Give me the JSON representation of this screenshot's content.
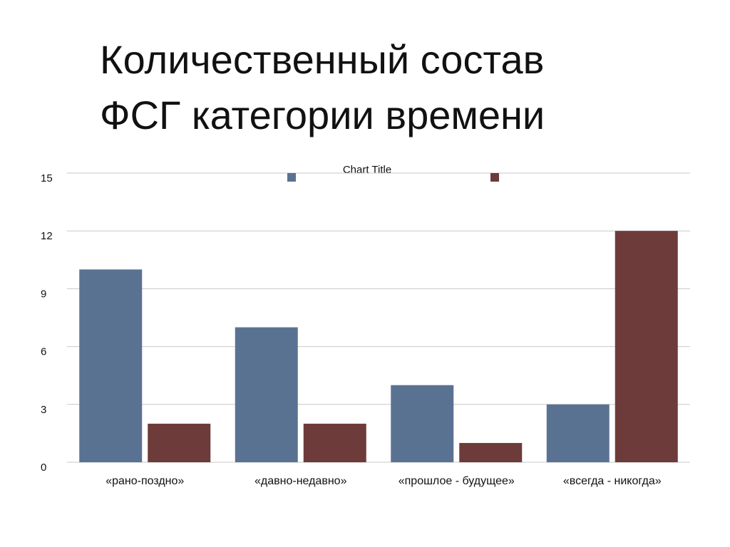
{
  "slide_title": [
    "Количественный состав",
    "ФСГ категории времени"
  ],
  "chart_data": {
    "type": "bar",
    "title": "Chart Title",
    "categories": [
      "«рано-поздно»",
      "«давно-недавно»",
      "«прошлое - будущее»",
      "«всегда - никогда»"
    ],
    "series": [
      {
        "color": "#5a7292",
        "values": [
          10,
          7,
          4,
          3
        ]
      },
      {
        "color": "#6d3b3a",
        "values": [
          2,
          2,
          1,
          12
        ]
      }
    ],
    "ylim": [
      0,
      15
    ],
    "yticks": [
      0,
      3,
      6,
      9,
      12,
      15
    ],
    "grid": true
  }
}
